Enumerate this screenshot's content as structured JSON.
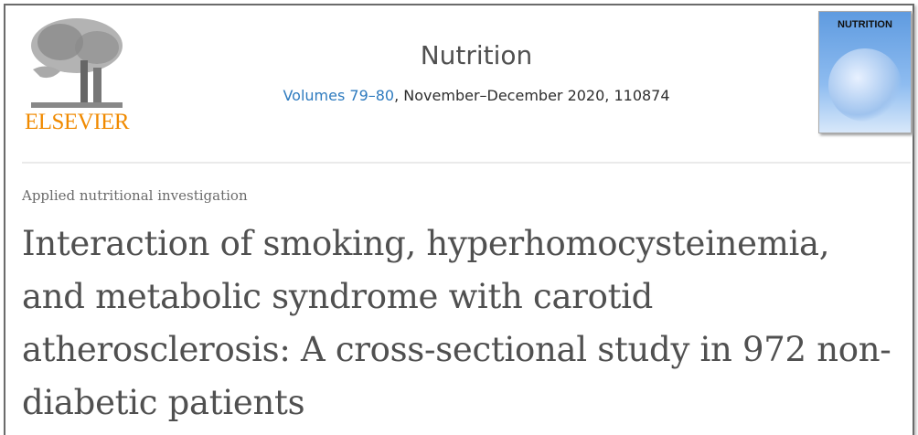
{
  "publisher": {
    "logo_text": "ELSEVIER",
    "brand_color": "#f08a00"
  },
  "journal": {
    "name": "Nutrition",
    "volume_link": "Volumes 79–80",
    "issue_rest": ", November–December 2020, 110874",
    "cover_title": "NUTRITION"
  },
  "article": {
    "category": "Applied nutritional investigation",
    "title": "Interaction of smoking, hyperhomocysteinemia, and metabolic syndrome with carotid atherosclerosis: A cross-sectional study in 972 non-diabetic patients"
  },
  "colors": {
    "link": "#2e7bbf",
    "title": "#505050"
  }
}
